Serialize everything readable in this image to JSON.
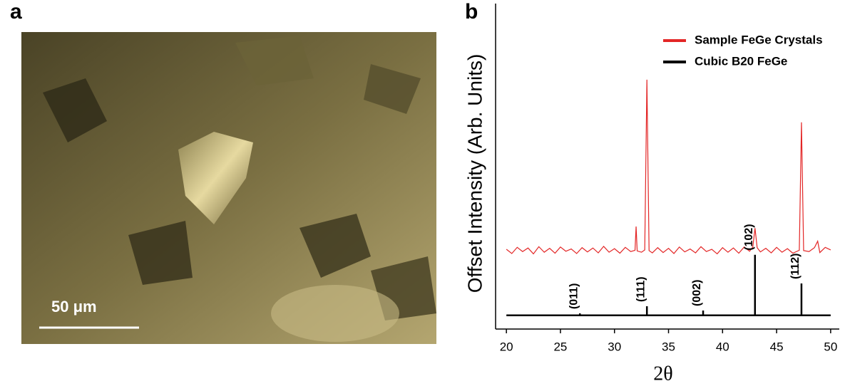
{
  "panel_labels": [
    "a",
    "b"
  ],
  "micrograph": {
    "scale_bar_label": "50 μm"
  },
  "chart_data": {
    "type": "line",
    "xlabel": "2θ",
    "ylabel": "Offset Intensity (Arb. Units)",
    "xlim": [
      19,
      50.8
    ],
    "xticks": [
      20,
      25,
      30,
      35,
      40,
      45,
      50
    ],
    "ylim": [
      0,
      100
    ],
    "legend": "upper right",
    "series": [
      {
        "name": "Sample FeGe Crystals",
        "color": "#e32626",
        "x": [
          20,
          20.5,
          21,
          21.5,
          22,
          22.5,
          23,
          23.5,
          24,
          24.5,
          25,
          25.5,
          26,
          26.5,
          27,
          27.5,
          28,
          28.5,
          29,
          29.5,
          30,
          30.5,
          31,
          31.5,
          31.9,
          32,
          32.1,
          32.5,
          32.8,
          33,
          33.2,
          33.5,
          34,
          34.5,
          35,
          35.5,
          36,
          36.5,
          37,
          37.5,
          38,
          38.5,
          39,
          39.5,
          40,
          40.5,
          41,
          41.5,
          42,
          42.5,
          42.8,
          43,
          43.2,
          43.5,
          44,
          44.5,
          45,
          45.5,
          46,
          46.5,
          47.1,
          47.3,
          47.5,
          48,
          48.5,
          48.8,
          49,
          49.5,
          50
        ],
        "values": [
          24.5,
          23.2,
          25.1,
          23.8,
          24.9,
          23.1,
          25.3,
          23.6,
          24.8,
          23.3,
          25.2,
          23.9,
          24.6,
          23.2,
          25.0,
          23.7,
          24.9,
          23.4,
          25.4,
          23.6,
          24.7,
          23.3,
          25.1,
          23.8,
          24.2,
          31.5,
          24.0,
          23.6,
          24.3,
          76.6,
          24.1,
          23.4,
          25.0,
          23.5,
          24.8,
          23.2,
          25.2,
          23.7,
          24.6,
          23.4,
          25.3,
          23.8,
          24.5,
          23.1,
          25.0,
          23.6,
          24.9,
          23.3,
          25.2,
          23.9,
          25.2,
          31.0,
          25.0,
          23.7,
          24.8,
          23.4,
          25.1,
          23.6,
          24.7,
          23.3,
          24.2,
          63.5,
          24.1,
          23.8,
          25.0,
          27.0,
          23.5,
          25.1,
          24.3
        ]
      },
      {
        "name": "Cubic B20 FeGe",
        "color": "#000000",
        "x": [
          20,
          26.8,
          26.8,
          26.8,
          33,
          33,
          33,
          38.2,
          38.2,
          38.2,
          43,
          43,
          43,
          47.3,
          47.3,
          47.3,
          50
        ],
        "values": [
          4.2,
          4.2,
          4.8,
          4.2,
          4.2,
          7,
          4.2,
          4.2,
          5.7,
          4.2,
          4.2,
          22.8,
          4.2,
          4.2,
          14,
          4.2,
          4.2
        ]
      }
    ],
    "annotations": [
      {
        "text": "(011)",
        "x": 26.8,
        "y": 4.8
      },
      {
        "text": "(111)",
        "x": 33,
        "y": 7
      },
      {
        "text": "(002)",
        "x": 38.2,
        "y": 5.7
      },
      {
        "text": "(102)",
        "x": 43,
        "y": 22.8
      },
      {
        "text": "(112)",
        "x": 47.3,
        "y": 14
      }
    ]
  }
}
